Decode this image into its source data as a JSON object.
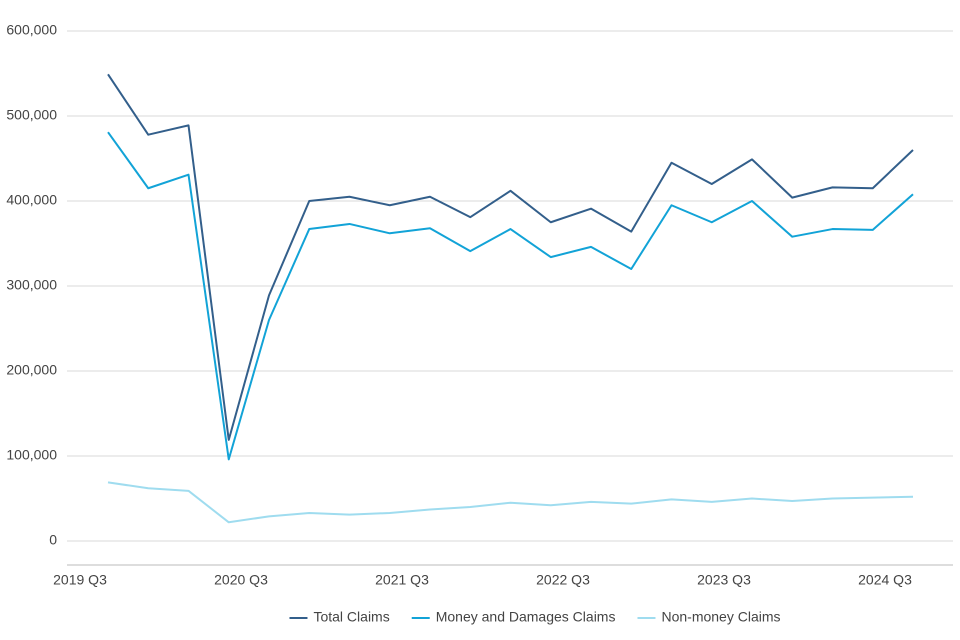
{
  "chart_data": {
    "type": "line",
    "categories": [
      "2019 Q3",
      null,
      null,
      null,
      "2020 Q3",
      null,
      null,
      null,
      "2021 Q3",
      null,
      null,
      null,
      "2022 Q3",
      null,
      null,
      null,
      "2023 Q3",
      null,
      null,
      null,
      "2024 Q3"
    ],
    "series": [
      {
        "name": "Total Claims",
        "color": "#335f8b",
        "values": [
          549000,
          478000,
          489000,
          119000,
          289000,
          400000,
          405000,
          395000,
          405000,
          381000,
          412000,
          375000,
          391000,
          364000,
          445000,
          420000,
          449000,
          404000,
          416000,
          415000,
          460000
        ]
      },
      {
        "name": "Money and Damages Claims",
        "color": "#12a3d7",
        "values": [
          481000,
          415000,
          431000,
          96000,
          260000,
          367000,
          373000,
          362000,
          368000,
          341000,
          367000,
          334000,
          346000,
          320000,
          395000,
          375000,
          400000,
          358000,
          367000,
          366000,
          408000
        ]
      },
      {
        "name": "Non-money Claims",
        "color": "#9fdcef",
        "values": [
          69000,
          62000,
          59000,
          22000,
          29000,
          33000,
          31000,
          33000,
          37000,
          40000,
          45000,
          42000,
          46000,
          44000,
          49000,
          46000,
          50000,
          47000,
          50000,
          51000,
          52000
        ]
      }
    ],
    "ylim": [
      0,
      600000
    ],
    "yticks": [
      0,
      {
        "value": 100000,
        "label": "100,000"
      },
      {
        "value": 200000,
        "label": "200,000"
      },
      {
        "value": 300000,
        "label": "300,000"
      },
      {
        "value": 400000,
        "label": "400,000"
      },
      {
        "value": 500000,
        "label": "500,000"
      },
      {
        "value": 600000,
        "label": "600,000"
      }
    ],
    "grid": true,
    "legend": "bottom"
  }
}
